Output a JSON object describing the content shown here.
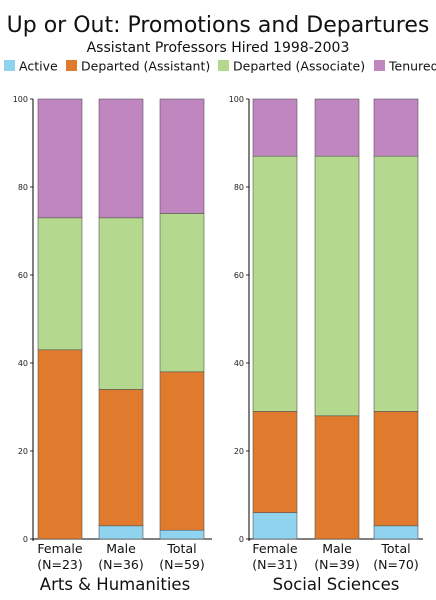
{
  "chart_data": {
    "type": "bar",
    "stacked": true,
    "title": "Up or Out: Promotions and Departures",
    "subtitle": "Assistant Professors Hired 1998-2003",
    "legend": [
      {
        "name": "Active",
        "color": "#8fd3ee"
      },
      {
        "name": "Departed (Assistant)",
        "color": "#e07b2e"
      },
      {
        "name": "Departed (Associate)",
        "color": "#b3d88e"
      },
      {
        "name": "Tenured",
        "color": "#c086c0"
      }
    ],
    "ylim": [
      0,
      100
    ],
    "yticks": [
      "0",
      "20",
      "40",
      "60",
      "80",
      "100"
    ],
    "panels": [
      {
        "title": "Arts & Humanities",
        "categories": [
          {
            "line1": "Female",
            "line2": "(N=23)"
          },
          {
            "line1": "Male",
            "line2": "(N=36)"
          },
          {
            "line1": "Total",
            "line2": "(N=59)"
          }
        ],
        "series": [
          {
            "name": "Active",
            "values": [
              0,
              3,
              2
            ]
          },
          {
            "name": "Departed (Assistant)",
            "values": [
              43,
              31,
              36
            ]
          },
          {
            "name": "Departed (Associate)",
            "values": [
              30,
              39,
              36
            ]
          },
          {
            "name": "Tenured",
            "values": [
              27,
              27,
              26
            ]
          }
        ]
      },
      {
        "title": "Social Sciences",
        "categories": [
          {
            "line1": "Female",
            "line2": "(N=31)"
          },
          {
            "line1": "Male",
            "line2": "(N=39)"
          },
          {
            "line1": "Total",
            "line2": "(N=70)"
          }
        ],
        "series": [
          {
            "name": "Active",
            "values": [
              6,
              0,
              3
            ]
          },
          {
            "name": "Departed (Assistant)",
            "values": [
              23,
              28,
              26
            ]
          },
          {
            "name": "Departed (Associate)",
            "values": [
              58,
              59,
              58
            ]
          },
          {
            "name": "Tenured",
            "values": [
              13,
              13,
              13
            ]
          }
        ]
      }
    ]
  }
}
